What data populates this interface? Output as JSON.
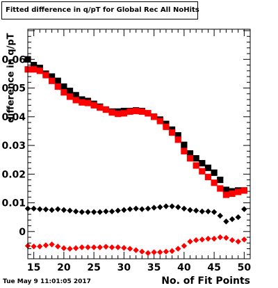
{
  "chart_data": {
    "type": "scatter",
    "title": "Fitted difference in q/pT  for Global Rec All NoHits",
    "xlabel": "No. of Fit Points",
    "ylabel": "difference in q/pT",
    "xlim": [
      14,
      51
    ],
    "ylim": [
      -0.0095,
      0.0705
    ],
    "x_ticks": [
      15,
      20,
      25,
      30,
      35,
      40,
      45,
      50
    ],
    "y_ticks": [
      0,
      0.01,
      0.02,
      0.03,
      0.04,
      0.05,
      0.06
    ],
    "y_tick_labels": [
      "0",
      "0.01",
      "0.02",
      "0.03",
      "0.04",
      "0.05",
      "0.06"
    ],
    "grid": false,
    "series": [
      {
        "marker": "square",
        "color": "#000000",
        "x": [
          14,
          15,
          16,
          17,
          18,
          19,
          20,
          21,
          22,
          23,
          24,
          25,
          26,
          27,
          28,
          29,
          30,
          31,
          32,
          33,
          34,
          35,
          36,
          37,
          38,
          39,
          40,
          41,
          42,
          43,
          44,
          45,
          46,
          47,
          48,
          49,
          50
        ],
        "y": [
          0.06,
          0.058,
          0.057,
          0.055,
          0.054,
          0.0525,
          0.0505,
          0.049,
          0.0475,
          0.046,
          0.0455,
          0.0445,
          0.0435,
          0.0425,
          0.0418,
          0.0418,
          0.042,
          0.042,
          0.0422,
          0.042,
          0.0412,
          0.04,
          0.039,
          0.0375,
          0.0355,
          0.0335,
          0.0302,
          0.0272,
          0.0255,
          0.0238,
          0.0222,
          0.0205,
          0.018,
          0.0145,
          0.014,
          0.0143,
          0.0143
        ]
      },
      {
        "marker": "square",
        "color": "#ff0000",
        "x": [
          14,
          15,
          16,
          17,
          18,
          19,
          20,
          21,
          22,
          23,
          24,
          25,
          26,
          27,
          28,
          29,
          30,
          31,
          32,
          33,
          34,
          35,
          36,
          37,
          38,
          39,
          40,
          41,
          42,
          43,
          44,
          45,
          46,
          47,
          48,
          49,
          50
        ],
        "y": [
          0.0565,
          0.0565,
          0.056,
          0.0545,
          0.0525,
          0.0505,
          0.0485,
          0.047,
          0.0458,
          0.045,
          0.0448,
          0.044,
          0.0432,
          0.0425,
          0.0415,
          0.041,
          0.0412,
          0.0418,
          0.042,
          0.0418,
          0.0412,
          0.04,
          0.0385,
          0.0365,
          0.0345,
          0.032,
          0.028,
          0.0255,
          0.023,
          0.021,
          0.019,
          0.017,
          0.015,
          0.0128,
          0.0132,
          0.0138,
          0.0143
        ]
      },
      {
        "marker": "diamond",
        "color": "#000000",
        "x": [
          14,
          15,
          16,
          17,
          18,
          19,
          20,
          21,
          22,
          23,
          24,
          25,
          26,
          27,
          28,
          29,
          30,
          31,
          32,
          33,
          34,
          35,
          36,
          37,
          38,
          39,
          40,
          41,
          42,
          43,
          44,
          45,
          46,
          47,
          48,
          49,
          50
        ],
        "y": [
          0.008,
          0.008,
          0.0078,
          0.0077,
          0.0075,
          0.0078,
          0.0075,
          0.0073,
          0.007,
          0.0068,
          0.0068,
          0.0068,
          0.0068,
          0.007,
          0.007,
          0.0073,
          0.0075,
          0.0078,
          0.008,
          0.0078,
          0.008,
          0.0083,
          0.0085,
          0.0088,
          0.0088,
          0.0085,
          0.008,
          0.0075,
          0.0073,
          0.007,
          0.007,
          0.0068,
          0.0055,
          0.0035,
          0.0043,
          0.005,
          0.0078
        ]
      },
      {
        "marker": "diamond",
        "color": "#ff0000",
        "x": [
          14,
          15,
          16,
          17,
          18,
          19,
          20,
          21,
          22,
          23,
          24,
          25,
          26,
          27,
          28,
          29,
          30,
          31,
          32,
          33,
          34,
          35,
          36,
          37,
          38,
          39,
          40,
          41,
          42,
          43,
          44,
          45,
          46,
          47,
          48,
          49,
          50
        ],
        "y": [
          -0.005,
          -0.0052,
          -0.0052,
          -0.0048,
          -0.0045,
          -0.0052,
          -0.0058,
          -0.006,
          -0.0058,
          -0.0055,
          -0.0055,
          -0.0055,
          -0.0055,
          -0.0053,
          -0.0055,
          -0.0055,
          -0.0057,
          -0.006,
          -0.0065,
          -0.007,
          -0.0075,
          -0.0072,
          -0.0072,
          -0.007,
          -0.0068,
          -0.006,
          -0.005,
          -0.0035,
          -0.003,
          -0.0028,
          -0.0025,
          -0.0025,
          -0.002,
          -0.0022,
          -0.003,
          -0.0035,
          -0.0028
        ]
      }
    ]
  },
  "footer": {
    "datestamp": "Tue May  9 11:01:05 2017"
  }
}
